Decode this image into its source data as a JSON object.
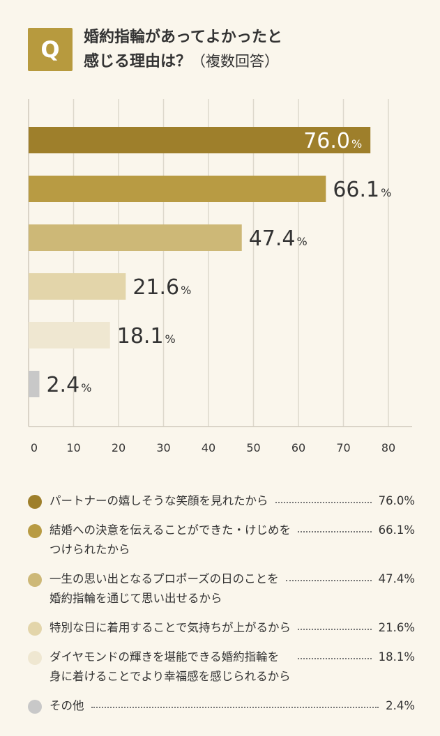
{
  "header": {
    "badge": "Q",
    "title_line1": "婚約指輪があってよかったと",
    "title_line2": "感じる理由は？",
    "title_sub": "（複数回答）"
  },
  "chart_data": {
    "type": "bar",
    "orientation": "horizontal",
    "categories": [
      "パートナーの嬉しそうな笑顔を見れたから",
      "結婚への決意を伝えることができた・けじめをつけられたから",
      "一生の思い出となるプロポーズの日のことを婚約指輪を通じて思い出せるから",
      "特別な日に着用することで気持ちが上がるから",
      "ダイヤモンドの輝きを堪能できる婚約指輪を身に着けることでより幸福感を感じられるから",
      "その他"
    ],
    "values": [
      76.0,
      66.1,
      47.4,
      21.6,
      18.1,
      2.4
    ],
    "value_labels": [
      "76.0",
      "66.1",
      "47.4",
      "21.6",
      "18.1",
      "2.4"
    ],
    "unit": "%",
    "colors": [
      "#9e7f2b",
      "#b89b43",
      "#cdb877",
      "#e3d5aa",
      "#efe7d1",
      "#c8c8c8"
    ],
    "xlim": [
      0,
      85
    ],
    "xticks": [
      "0",
      "10",
      "20",
      "30",
      "40",
      "50",
      "60",
      "70",
      "80"
    ],
    "grid": true
  },
  "legend": {
    "items": [
      {
        "label": "パートナーの嬉しそうな笑顔を見れたから",
        "value": "76.0%",
        "color": "#9e7f2b"
      },
      {
        "label": "結婚への決意を伝えることができた・けじめを\nつけられたから",
        "value": "66.1%",
        "color": "#b89b43"
      },
      {
        "label": "一生の思い出となるプロポーズの日のことを\n婚約指輪を通じて思い出せるから",
        "value": "47.4%",
        "color": "#cdb877"
      },
      {
        "label": "特別な日に着用することで気持ちが上がるから",
        "value": "21.6%",
        "color": "#e3d5aa"
      },
      {
        "label": "ダイヤモンドの輝きを堪能できる婚約指輪を\n身に着けることでより幸福感を感じられるから",
        "value": "18.1%",
        "color": "#efe7d1"
      },
      {
        "label": "その他",
        "value": "2.4%",
        "color": "#c8c8c8"
      }
    ]
  }
}
